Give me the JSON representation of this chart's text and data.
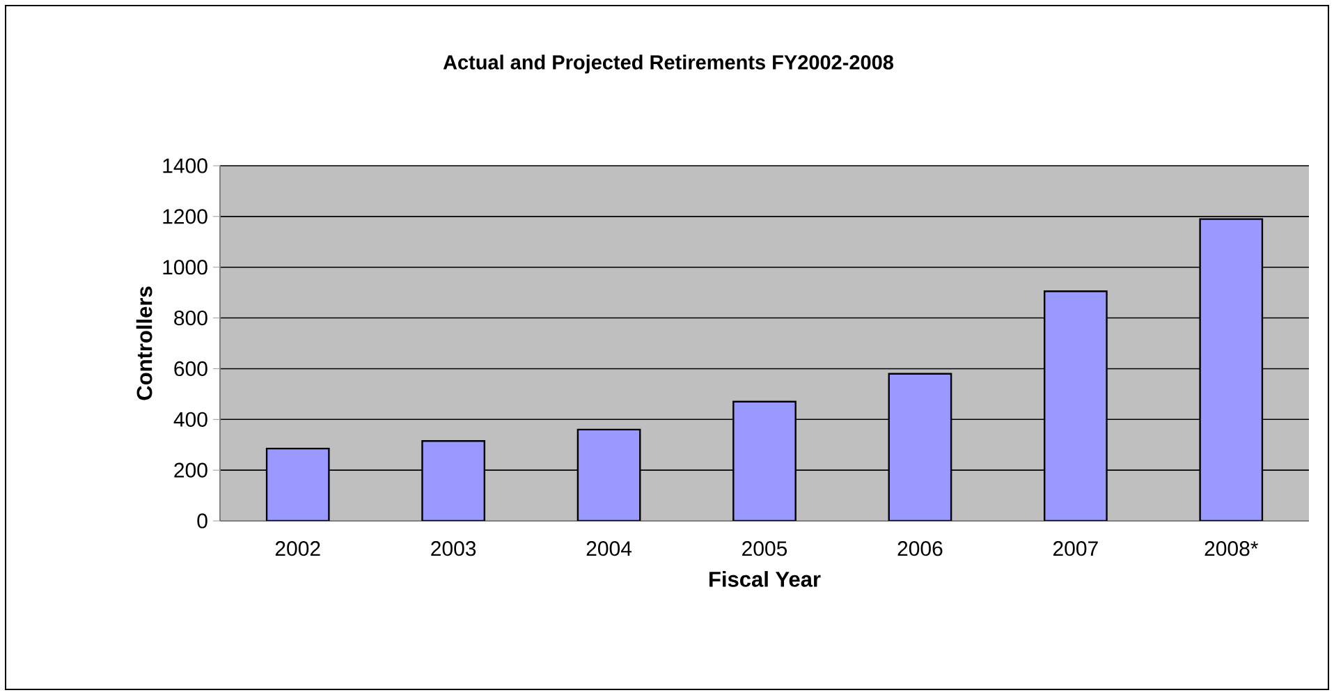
{
  "chart_data": {
    "type": "bar",
    "title": "Actual and Projected Retirements FY2002-2008",
    "xlabel": "Fiscal Year",
    "ylabel": "Controllers",
    "categories": [
      "2002",
      "2003",
      "2004",
      "2005",
      "2006",
      "2007",
      "2008*"
    ],
    "values": [
      285,
      315,
      360,
      470,
      580,
      905,
      1190
    ],
    "color": "#9999ff",
    "ylim": [
      0,
      1400
    ],
    "yticks": [
      0,
      200,
      400,
      600,
      800,
      1000,
      1200,
      1400
    ],
    "grid": "y"
  }
}
